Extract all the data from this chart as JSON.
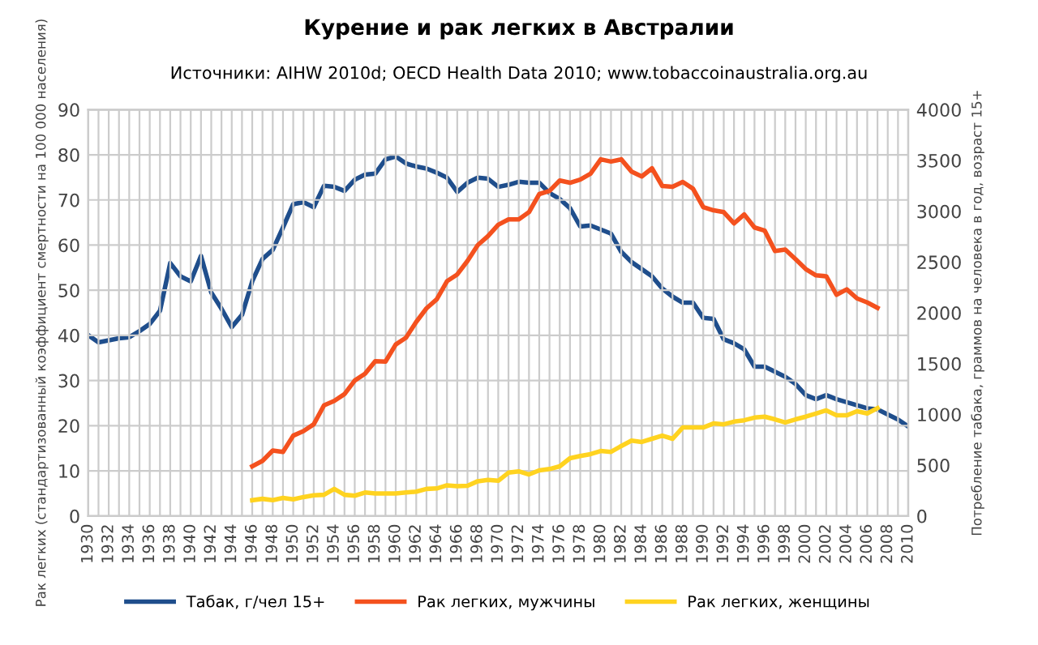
{
  "chart_data": {
    "type": "line",
    "title": "Курение и рак легких в Австралии",
    "subtitle": "Источники: AIHW 2010d; OECD Health Data 2010; www.tobaccoinaustralia.org.au",
    "ylabel": "Рак легких (стандартизованный коэффициент смертности на 100 000 населения)",
    "y2label": "Потребление табака, граммов на человека в год, возраст 15+",
    "xlim": [
      1930,
      2010
    ],
    "xticks": [
      1930,
      {
        "value": 1931,
        "label": null
      },
      1932,
      {
        "value": 1933,
        "label": null
      },
      1934,
      {
        "value": 1935,
        "label": null
      },
      1936,
      {
        "value": 1937,
        "label": null
      },
      1938,
      {
        "value": 1939,
        "label": null
      },
      1940,
      {
        "value": 1941,
        "label": null
      },
      1942,
      {
        "value": 1943,
        "label": null
      },
      1944,
      {
        "value": 1945,
        "label": null
      },
      1946,
      {
        "value": 1947,
        "label": null
      },
      1948,
      {
        "value": 1949,
        "label": null
      },
      1950,
      {
        "value": 1951,
        "label": null
      },
      1952,
      {
        "value": 1953,
        "label": null
      },
      1954,
      {
        "value": 1955,
        "label": null
      },
      1956,
      {
        "value": 1957,
        "label": null
      },
      1958,
      {
        "value": 1959,
        "label": null
      },
      1960,
      {
        "value": 1961,
        "label": null
      },
      1962,
      {
        "value": 1963,
        "label": null
      },
      1964,
      {
        "value": 1965,
        "label": null
      },
      1966,
      {
        "value": 1967,
        "label": null
      },
      1968,
      {
        "value": 1969,
        "label": null
      },
      1970,
      {
        "value": 1971,
        "label": null
      },
      1972,
      {
        "value": 1973,
        "label": null
      },
      1974,
      {
        "value": 1975,
        "label": null
      },
      1976,
      {
        "value": 1977,
        "label": null
      },
      1978,
      {
        "value": 1979,
        "label": null
      },
      1980,
      {
        "value": 1981,
        "label": null
      },
      1982,
      {
        "value": 1983,
        "label": null
      },
      1984,
      {
        "value": 1985,
        "label": null
      },
      1986,
      {
        "value": 1987,
        "label": null
      },
      1988,
      {
        "value": 1989,
        "label": null
      },
      1990,
      {
        "value": 1991,
        "label": null
      },
      1992,
      {
        "value": 1993,
        "label": null
      },
      1994,
      {
        "value": 1995,
        "label": null
      },
      1996,
      {
        "value": 1997,
        "label": null
      },
      1998,
      {
        "value": 1999,
        "label": null
      },
      2000,
      {
        "value": 2001,
        "label": null
      },
      2002,
      {
        "value": 2003,
        "label": null
      },
      2004,
      {
        "value": 2005,
        "label": null
      },
      2006,
      {
        "value": 2007,
        "label": null
      },
      2008,
      {
        "value": 2009,
        "label": null
      },
      2010
    ],
    "ylim": [
      0,
      90
    ],
    "yticks": [
      0,
      10,
      20,
      30,
      40,
      50,
      60,
      70,
      80,
      90
    ],
    "y2lim": [
      0,
      4000
    ],
    "y2ticks": [
      0,
      500,
      1000,
      1500,
      2000,
      2500,
      3000,
      3500,
      4000
    ],
    "grid": true,
    "legend": "bottom",
    "marker": "none",
    "line_style": "solid",
    "series": [
      {
        "name": "Табак, г/чел 15+",
        "color": "#1f4e8c",
        "axis": "y2",
        "x": [
          1930,
          1931,
          1932,
          1933,
          1934,
          1935,
          1936,
          1937,
          1938,
          1939,
          1940,
          1941,
          1942,
          1943,
          1944,
          1945,
          1946,
          1947,
          1948,
          1949,
          1950,
          1951,
          1952,
          1953,
          1954,
          1955,
          1956,
          1957,
          1958,
          1959,
          1960,
          1961,
          1962,
          1963,
          1964,
          1965,
          1966,
          1967,
          1968,
          1969,
          1970,
          1971,
          1972,
          1973,
          1974,
          1975,
          1976,
          1977,
          1978,
          1979,
          1980,
          1981,
          1982,
          1983,
          1984,
          1985,
          1986,
          1987,
          1988,
          1989,
          1990,
          1991,
          1992,
          1993,
          1994,
          1995,
          1996,
          1997,
          1998,
          1999,
          2000,
          2001,
          2002,
          2003,
          2004,
          2005,
          2006,
          2007,
          2008,
          2009,
          2010
        ],
        "values": [
          1780,
          1710,
          1730,
          1750,
          1760,
          1820,
          1890,
          2020,
          2490,
          2360,
          2310,
          2560,
          2200,
          2040,
          1860,
          1980,
          2310,
          2530,
          2620,
          2840,
          3070,
          3090,
          3040,
          3250,
          3240,
          3200,
          3310,
          3360,
          3370,
          3510,
          3540,
          3470,
          3440,
          3420,
          3380,
          3330,
          3190,
          3280,
          3330,
          3320,
          3240,
          3260,
          3290,
          3280,
          3280,
          3180,
          3120,
          3030,
          2850,
          2860,
          2820,
          2780,
          2600,
          2500,
          2430,
          2360,
          2240,
          2160,
          2100,
          2100,
          1950,
          1940,
          1740,
          1700,
          1640,
          1470,
          1470,
          1420,
          1370,
          1300,
          1190,
          1150,
          1190,
          1150,
          1120,
          1090,
          1060,
          1050,
          1000,
          950,
          880
        ]
      },
      {
        "name": "Рак легких, мужчины",
        "color": "#f4511e",
        "x": [
          1946,
          1947,
          1948,
          1949,
          1950,
          1951,
          1952,
          1953,
          1954,
          1955,
          1956,
          1957,
          1958,
          1959,
          1960,
          1961,
          1962,
          1963,
          1964,
          1965,
          1966,
          1967,
          1968,
          1969,
          1970,
          1971,
          1972,
          1973,
          1974,
          1975,
          1976,
          1977,
          1978,
          1979,
          1980,
          1981,
          1982,
          1983,
          1984,
          1985,
          1986,
          1987,
          1988,
          1989,
          1990,
          1991,
          1992,
          1993,
          1994,
          1995,
          1996,
          1997,
          1998,
          1999,
          2000,
          2001,
          2002,
          2003,
          2004,
          2005,
          2006,
          2007
        ],
        "values": [
          11,
          12.2,
          14.5,
          14.2,
          17.8,
          18.8,
          20.3,
          24.5,
          25.5,
          27,
          30,
          31.5,
          34.3,
          34.2,
          38,
          39.5,
          43,
          46,
          48,
          52,
          53.5,
          56.5,
          60,
          62,
          64.5,
          65.7,
          65.7,
          67.3,
          71.3,
          72,
          74.3,
          73.8,
          74.5,
          75.8,
          79,
          78.5,
          79,
          76.3,
          75.2,
          77,
          73.1,
          72.9,
          74,
          72.5,
          68.4,
          67.7,
          67.3,
          64.8,
          66.8,
          63.9,
          63.2,
          58.7,
          59,
          56.9,
          54.7,
          53.3,
          53.1,
          49,
          50.2,
          48.2,
          47.3,
          46.1
        ]
      },
      {
        "name": "Рак легких, женщины",
        "color": "#ffd320",
        "x": [
          1946,
          1947,
          1948,
          1949,
          1950,
          1951,
          1952,
          1953,
          1954,
          1955,
          1956,
          1957,
          1958,
          1959,
          1960,
          1961,
          1962,
          1963,
          1964,
          1965,
          1966,
          1967,
          1968,
          1969,
          1970,
          1971,
          1972,
          1973,
          1974,
          1975,
          1976,
          1977,
          1978,
          1979,
          1980,
          1981,
          1982,
          1983,
          1984,
          1985,
          1986,
          1987,
          1988,
          1989,
          1990,
          1991,
          1992,
          1993,
          1994,
          1995,
          1996,
          1997,
          1998,
          1999,
          2000,
          2001,
          2002,
          2003,
          2004,
          2005,
          2006,
          2007
        ],
        "values": [
          3.5,
          3.8,
          3.5,
          4,
          3.7,
          4.2,
          4.6,
          4.7,
          6,
          4.7,
          4.5,
          5.2,
          5,
          5,
          5,
          5.2,
          5.4,
          6,
          6.1,
          6.8,
          6.6,
          6.7,
          7.7,
          8,
          7.8,
          9.6,
          9.9,
          9.2,
          10.1,
          10.4,
          11,
          12.8,
          13.3,
          13.7,
          14.4,
          14.2,
          15.5,
          16.7,
          16.4,
          17.1,
          17.8,
          17.1,
          19.6,
          19.6,
          19.6,
          20.5,
          20.3,
          20.9,
          21.2,
          21.8,
          22,
          21.4,
          20.7,
          21.4,
          22,
          22.7,
          23.4,
          22.3,
          22.3,
          23.2,
          22.7,
          23.9
        ]
      }
    ]
  }
}
